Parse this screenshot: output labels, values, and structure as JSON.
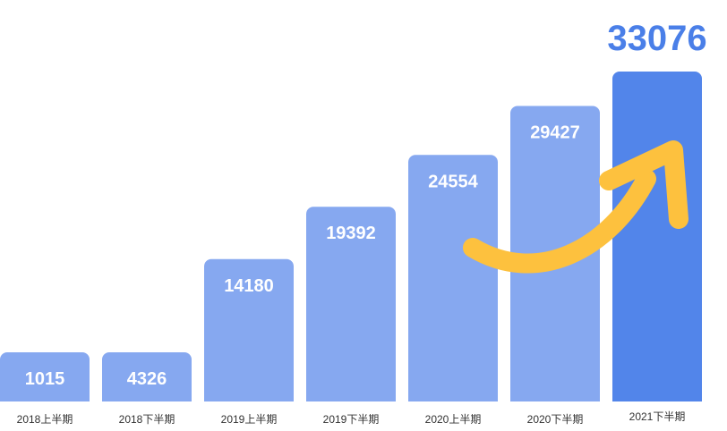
{
  "chart_data": {
    "type": "bar",
    "categories": [
      "2018上半期",
      "2018下半期",
      "2019上半期",
      "2019下半期",
      "2020上半期",
      "2020下半期",
      "2021下半期"
    ],
    "values": [
      1015,
      4326,
      14180,
      19392,
      24554,
      29427,
      33076
    ],
    "data_labels": [
      "1015",
      "4326",
      "14180",
      "19392",
      "24554",
      "29427",
      "33076"
    ],
    "title": "",
    "xlabel": "",
    "ylabel": "",
    "ylim": [
      0,
      35000
    ],
    "grid": false,
    "legend": "none",
    "colors": {
      "bar": "#86a8f0",
      "highlight_bar": "#5285ea",
      "highlight_label": "#4a7fe8",
      "arrow": "#fdc13e",
      "category_text": "#333333"
    }
  }
}
